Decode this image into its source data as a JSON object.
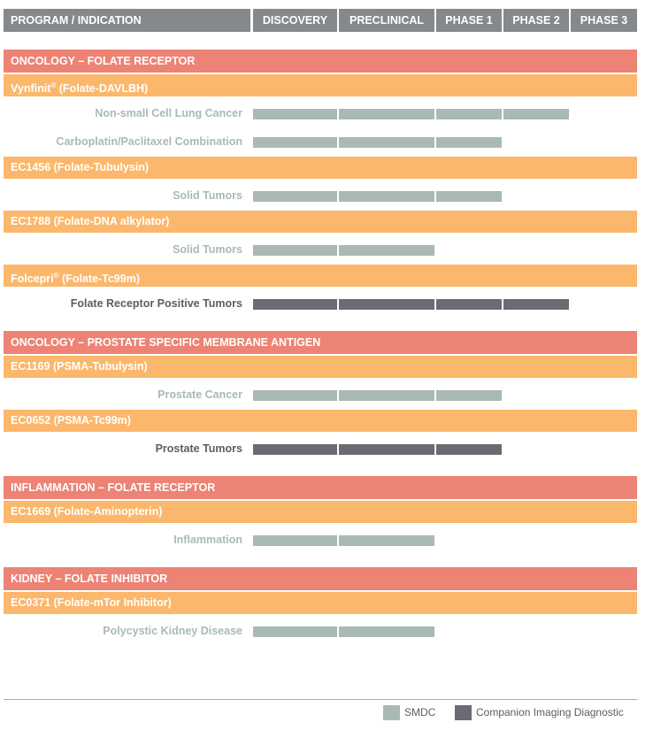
{
  "chart_data": {
    "type": "table",
    "title": "",
    "columns": [
      "PROGRAM / INDICATION",
      "DISCOVERY",
      "PRECLINICAL",
      "PHASE 1",
      "PHASE 2",
      "PHASE 3"
    ],
    "stages": [
      "DISCOVERY",
      "PRECLINICAL",
      "PHASE 1",
      "PHASE 2",
      "PHASE 3"
    ],
    "groups": [
      {
        "category": "ONCOLOGY – FOLATE RECEPTOR",
        "programs": [
          {
            "name": "Vynfinit",
            "mark": "®",
            "suffix": " (Folate-DAVLBH)",
            "indications": [
              {
                "name": "Non-small Cell Lung Cancer",
                "type": "SMDC",
                "stage_reached": "PHASE 2"
              },
              {
                "name": "Carboplatin/Paclitaxel Combination",
                "type": "SMDC",
                "stage_reached": "PHASE 1"
              }
            ]
          },
          {
            "name": "EC1456 (Folate-Tubulysin)",
            "mark": "",
            "suffix": "",
            "indications": [
              {
                "name": "Solid Tumors",
                "type": "SMDC",
                "stage_reached": "PHASE 1"
              }
            ]
          },
          {
            "name": "EC1788 (Folate-DNA alkylator)",
            "mark": "",
            "suffix": "",
            "indications": [
              {
                "name": "Solid Tumors",
                "type": "SMDC",
                "stage_reached": "PRECLINICAL"
              }
            ]
          },
          {
            "name": "Folcepri",
            "mark": "®",
            "suffix": " (Folate-Tc99m)",
            "indications": [
              {
                "name": "Folate Receptor Positive Tumors",
                "type": "Companion Imaging Diagnostic",
                "stage_reached": "PHASE 2"
              }
            ]
          }
        ]
      },
      {
        "category": "ONCOLOGY – PROSTATE SPECIFIC MEMBRANE ANTIGEN",
        "programs": [
          {
            "name": "EC1169 (PSMA-Tubulysin)",
            "mark": "",
            "suffix": "",
            "indications": [
              {
                "name": "Prostate Cancer",
                "type": "SMDC",
                "stage_reached": "PHASE 1"
              }
            ]
          },
          {
            "name": "EC0652 (PSMA-Tc99m)",
            "mark": "",
            "suffix": "",
            "indications": [
              {
                "name": "Prostate Tumors",
                "type": "Companion Imaging Diagnostic",
                "stage_reached": "PHASE 1"
              }
            ]
          }
        ]
      },
      {
        "category": "INFLAMMATION – FOLATE RECEPTOR",
        "programs": [
          {
            "name": "EC1669 (Folate-Aminopterin)",
            "mark": "",
            "suffix": "",
            "indications": [
              {
                "name": "Inflammation",
                "type": "SMDC",
                "stage_reached": "PRECLINICAL"
              }
            ]
          }
        ]
      },
      {
        "category": "KIDNEY – FOLATE INHIBITOR",
        "programs": [
          {
            "name": "EC0371 (Folate-mTor Inhibitor)",
            "mark": "",
            "suffix": "",
            "indications": [
              {
                "name": "Polycystic Kidney Disease",
                "type": "SMDC",
                "stage_reached": "PRECLINICAL"
              }
            ]
          }
        ]
      }
    ],
    "legend": [
      {
        "name": "SMDC",
        "color": "#a9bab2"
      },
      {
        "name": "Companion Imaging Diagnostic",
        "color": "#696c72"
      }
    ],
    "legend_position": "bottom-right",
    "colors": {
      "header": "#85898c",
      "category": "#ec8374",
      "program": "#fbb76b"
    }
  }
}
